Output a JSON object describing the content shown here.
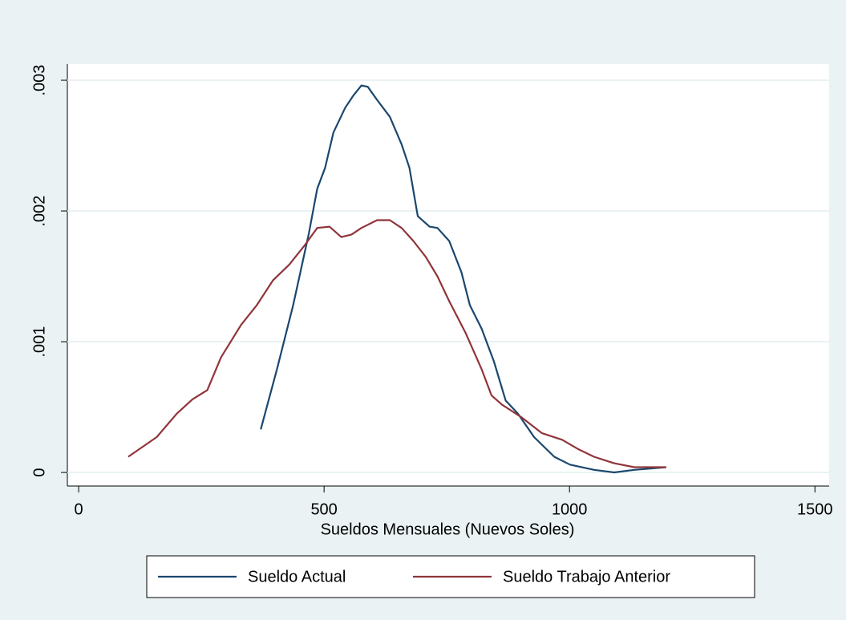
{
  "chart_data": {
    "type": "line",
    "xlabel": "Sueldos Mensuales (Nuevos Soles)",
    "xlim": [
      -23,
      1529
    ],
    "ylim": [
      -0.000104,
      0.003123
    ],
    "xticks": [
      0,
      500,
      1000,
      1500
    ],
    "yticks": [
      0,
      {
        "value": 0.001,
        "label": ".001"
      },
      {
        "value": 0.002,
        "label": ".002"
      },
      {
        "value": 0.003,
        "label": ".003"
      }
    ],
    "grid": true,
    "legend": "bottom",
    "series": [
      {
        "name": "Sueldo Actual",
        "color": "#1a476f",
        "x": [
          371,
          404,
          437,
          469,
          486,
          502,
          519,
          543,
          559,
          576,
          589,
          608,
          634,
          658,
          674,
          691,
          715,
          731,
          755,
          780,
          797,
          821,
          846,
          870,
          895,
          928,
          969,
          1001,
          1050,
          1091,
          1132,
          1197
        ],
        "values": [
          0.00033,
          0.00079,
          0.00128,
          0.00183,
          0.00217,
          0.00233,
          0.0026,
          0.00279,
          0.00288,
          0.00296,
          0.00295,
          0.00285,
          0.00272,
          0.00251,
          0.00233,
          0.00196,
          0.00188,
          0.00187,
          0.00177,
          0.00153,
          0.00128,
          0.0011,
          0.00085,
          0.00055,
          0.00045,
          0.00027,
          0.00012,
          6e-05,
          2e-05,
          0,
          2e-05,
          4e-05
        ]
      },
      {
        "name": "Sueldo Trabajo Anterior",
        "color": "#90353b",
        "x": [
          101,
          159,
          200,
          232,
          262,
          290,
          331,
          363,
          396,
          429,
          461,
          486,
          511,
          535,
          556,
          576,
          608,
          634,
          658,
          682,
          707,
          731,
          755,
          788,
          821,
          841,
          862,
          903,
          944,
          985,
          1017,
          1050,
          1091,
          1132,
          1197
        ],
        "values": [
          0.00012,
          0.00027,
          0.00045,
          0.00056,
          0.00063,
          0.00088,
          0.00113,
          0.00128,
          0.00147,
          0.00159,
          0.00174,
          0.00187,
          0.00188,
          0.0018,
          0.00182,
          0.00187,
          0.00193,
          0.00193,
          0.00187,
          0.00177,
          0.00165,
          0.0015,
          0.00131,
          0.00107,
          0.00079,
          0.00059,
          0.00052,
          0.00042,
          0.0003,
          0.00025,
          0.00018,
          0.00012,
          7e-05,
          4e-05,
          4e-05
        ]
      }
    ]
  }
}
